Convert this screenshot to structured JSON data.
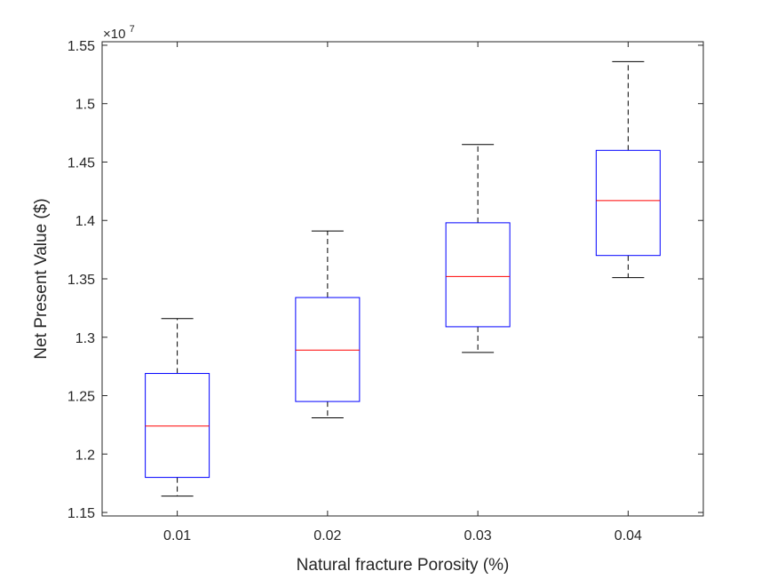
{
  "chart_data": {
    "type": "box",
    "title": "",
    "xlabel": "Natural fracture Porosity (%)",
    "ylabel": "Net Present Value ($)",
    "y_exponent_label": "×10",
    "y_exponent_power": "7",
    "y_scale_factor": 10000000,
    "categories": [
      "0.01",
      "0.02",
      "0.03",
      "0.04"
    ],
    "yticks": [
      "1.15",
      "1.2",
      "1.25",
      "1.3",
      "1.35",
      "1.4",
      "1.45",
      "1.5",
      "1.55"
    ],
    "ylim": [
      1.147,
      1.553
    ],
    "boxes": [
      {
        "category": "0.01",
        "whisker_low": 1.164,
        "q1": 1.18,
        "median": 1.224,
        "q3": 1.269,
        "whisker_high": 1.316
      },
      {
        "category": "0.02",
        "whisker_low": 1.231,
        "q1": 1.245,
        "median": 1.289,
        "q3": 1.334,
        "whisker_high": 1.391
      },
      {
        "category": "0.03",
        "whisker_low": 1.287,
        "q1": 1.309,
        "median": 1.352,
        "q3": 1.398,
        "whisker_high": 1.465
      },
      {
        "category": "0.04",
        "whisker_low": 1.351,
        "q1": 1.37,
        "median": 1.417,
        "q3": 1.46,
        "whisker_high": 1.536
      }
    ],
    "grid": false,
    "legend": "none",
    "colors": {
      "box": "#0000ff",
      "median": "#ff0000",
      "whisker": "#000000",
      "axis": "#262626"
    }
  }
}
